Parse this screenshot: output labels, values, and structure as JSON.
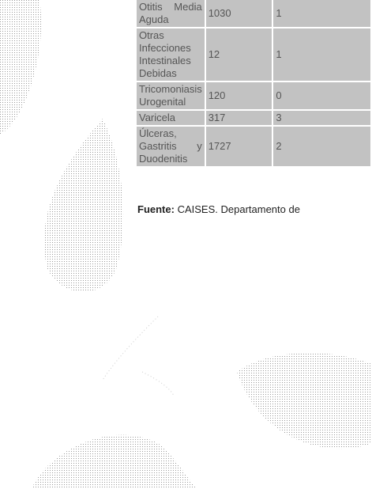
{
  "table": {
    "rows": [
      [
        "Otitis Media Aguda",
        "1030",
        "1"
      ],
      [
        "Otras Infecciones Intestinales Debidas",
        "12",
        "1"
      ],
      [
        "Tricomoniasis Urogenital",
        "120",
        "0"
      ],
      [
        "Varicela",
        "317",
        "3"
      ],
      [
        "Úlceras, Gastritis y Duodenitis",
        "1727",
        "2"
      ]
    ]
  },
  "source": {
    "label": "Fuente:",
    "text": "CAISES. Departamento de"
  }
}
